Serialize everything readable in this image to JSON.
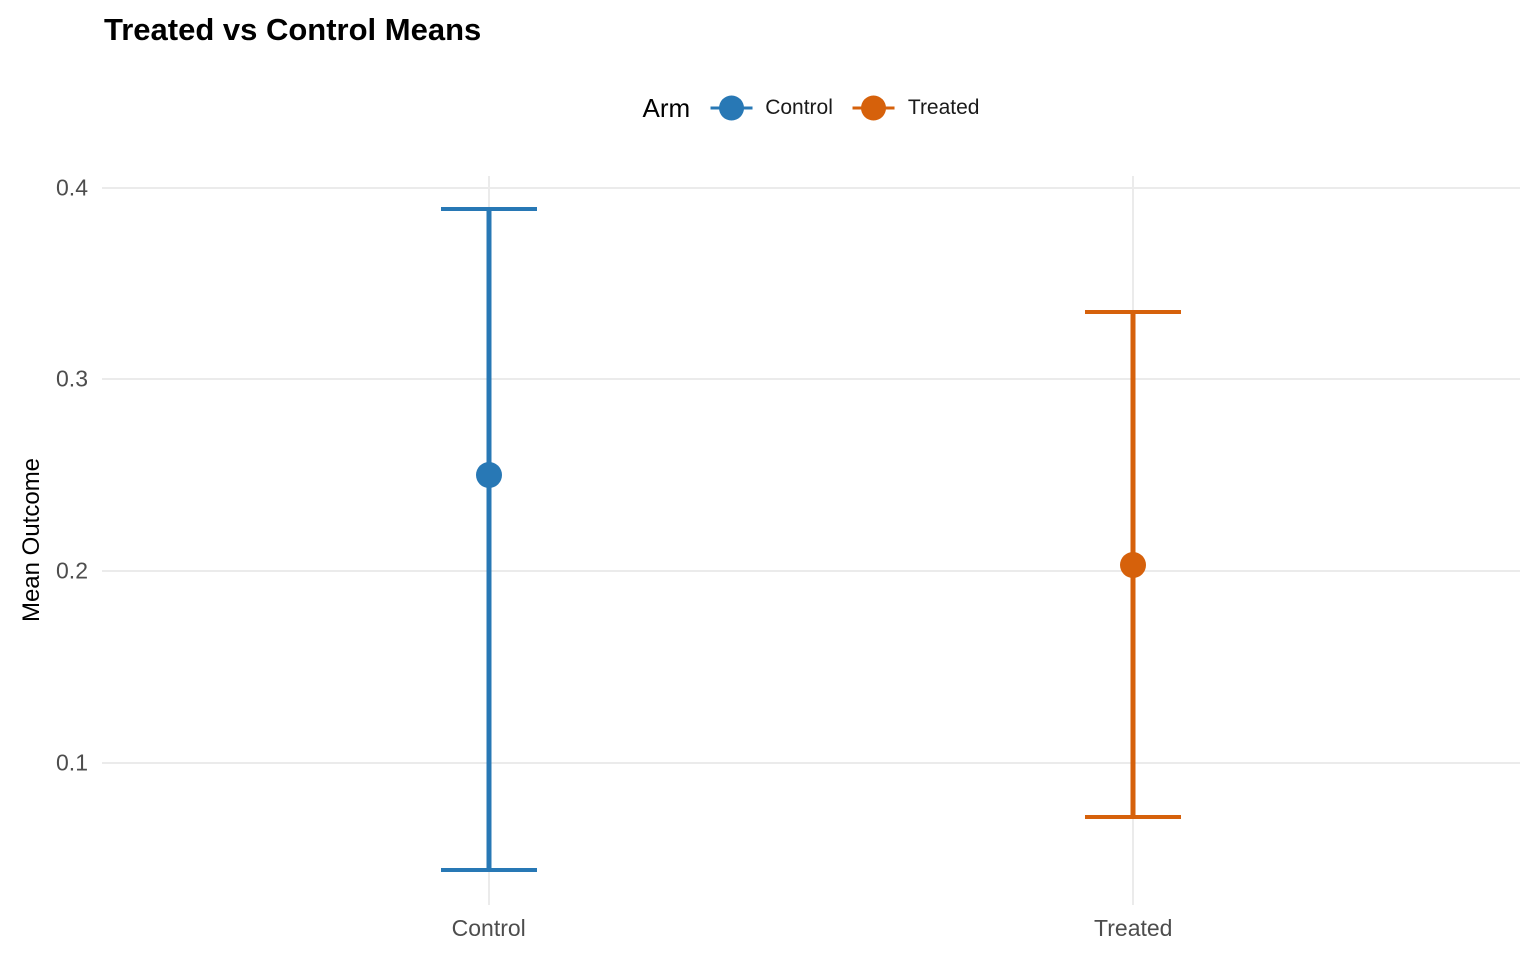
{
  "chart_data": {
    "type": "pointrange",
    "title": "Treated vs Control Means",
    "ylabel": "Mean Outcome",
    "xlabel": "",
    "legend": {
      "title": "Arm",
      "position": "top-center",
      "entries": [
        "Control",
        "Treated"
      ]
    },
    "categories": [
      "Control",
      "Treated"
    ],
    "series": [
      {
        "name": "Control",
        "color": "#2878b5",
        "mean": 0.25,
        "lower": 0.044,
        "upper": 0.389
      },
      {
        "name": "Treated",
        "color": "#d6610b",
        "mean": 0.203,
        "lower": 0.072,
        "upper": 0.335
      }
    ],
    "yticks": [
      "0.1",
      "0.2",
      "0.3",
      "0.4"
    ],
    "ytick_values": [
      0.1,
      0.2,
      0.3,
      0.4
    ],
    "ylim": [
      0.026,
      0.406
    ],
    "grid": {
      "horizontal_major": true,
      "vertical_at_categories": true,
      "color": "#ebebeb"
    },
    "colors": {
      "background": "#ffffff",
      "title_text": "#000000",
      "axis_title_text": "#000000",
      "tick_label_text": "#4d4d4d",
      "control": "#2878b5",
      "treated": "#d6610b"
    }
  }
}
